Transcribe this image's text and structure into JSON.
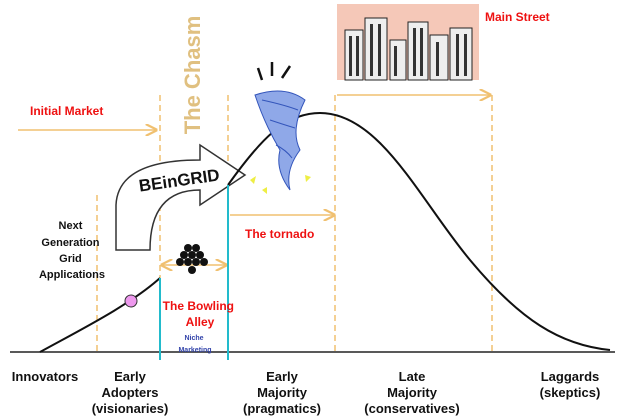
{
  "labels": {
    "main_street": "Main Street",
    "initial_market": "Initial Market",
    "chasm": "The Chasm",
    "beingrid": "BEinGRID",
    "next_generation": [
      "Next",
      "Generation",
      "Grid",
      "Applications"
    ],
    "tornado": "The tornado",
    "bowling_alley": [
      "The Bowling",
      "Alley"
    ],
    "niche_marketing": [
      "Niche",
      "Marketing"
    ]
  },
  "segments": [
    {
      "lines": [
        "Innovators"
      ]
    },
    {
      "lines": [
        "Early",
        "Adopters",
        "(visionaries)"
      ]
    },
    {
      "lines": [
        "Early",
        "Majority",
        "(pragmatics)"
      ]
    },
    {
      "lines": [
        "Late",
        "Majority",
        "(conservatives)"
      ]
    },
    {
      "lines": [
        "Laggards",
        "(skeptics)"
      ]
    }
  ]
}
